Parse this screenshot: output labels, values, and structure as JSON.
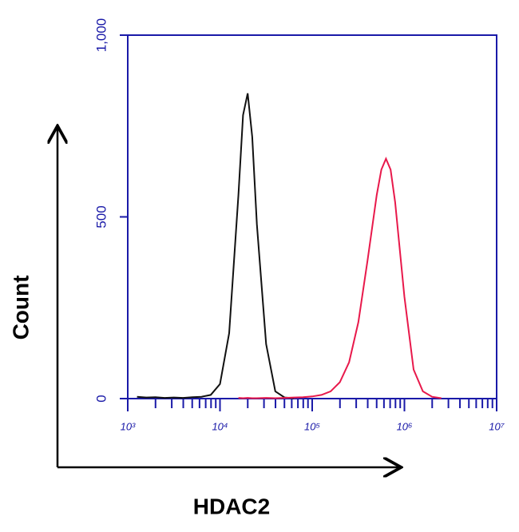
{
  "chart_data": {
    "type": "line",
    "xlabel": "HDAC2",
    "ylabel": "Count",
    "xscale": "log",
    "x": [
      1259,
      1585,
      1995,
      2512,
      3162,
      3981,
      5012,
      6310,
      7943,
      10000,
      12589,
      15849,
      17783,
      19953,
      22387,
      25119,
      31623,
      39811,
      50119,
      63096,
      79433,
      100000,
      125893,
      158489,
      199526,
      251189,
      316228,
      398107,
      501187,
      562341,
      630957,
      707946,
      794328,
      1000000,
      1258925,
      1584893,
      1995262,
      2511886
    ],
    "series": [
      {
        "color": "#111111",
        "values": [
          5,
          3,
          4,
          2,
          3,
          2,
          4,
          5,
          10,
          40,
          180,
          560,
          780,
          840,
          720,
          480,
          150,
          20,
          3,
          1,
          null,
          null,
          null,
          null,
          null,
          null,
          null,
          null,
          null,
          null,
          null,
          null,
          null,
          null,
          null,
          null,
          null,
          null
        ]
      },
      {
        "color": "#e8194b",
        "values": [
          null,
          null,
          null,
          null,
          null,
          null,
          null,
          null,
          null,
          null,
          null,
          2,
          1,
          2,
          1,
          1,
          2,
          1,
          2,
          3,
          4,
          6,
          10,
          20,
          45,
          100,
          210,
          380,
          560,
          630,
          660,
          630,
          540,
          280,
          80,
          20,
          5,
          1
        ]
      }
    ],
    "xlim": [
      1000,
      10000000
    ],
    "ylim": [
      0,
      1000
    ],
    "xticks": [
      {
        "value": 1000,
        "label": "10³"
      },
      {
        "value": 10000,
        "label": "10⁴"
      },
      {
        "value": 100000,
        "label": "10⁵"
      },
      {
        "value": 1000000,
        "label": "10⁶"
      },
      {
        "value": 10000000,
        "label": "10⁷"
      }
    ],
    "minor_xticks": [
      2000,
      3000,
      4000,
      5000,
      6000,
      7000,
      8000,
      9000,
      20000,
      30000,
      40000,
      50000,
      60000,
      70000,
      80000,
      90000,
      200000,
      300000,
      400000,
      500000,
      600000,
      700000,
      800000,
      900000,
      2000000,
      3000000,
      4000000,
      5000000,
      6000000,
      7000000,
      8000000,
      9000000
    ],
    "yticks": [
      0,
      500,
      {
        "value": 1000,
        "label": "1,000"
      }
    ],
    "axis_color": "#1a1aa8"
  }
}
